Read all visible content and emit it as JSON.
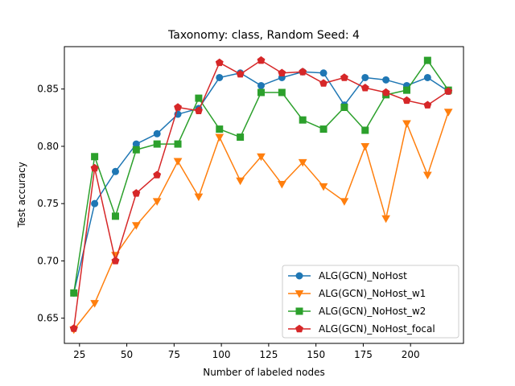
{
  "chart_data": {
    "type": "line",
    "title": "Taxonomy: class, Random Seed: 4",
    "xlabel": "Number of labeled nodes",
    "ylabel": "Test accuracy",
    "xlim": [
      17,
      228
    ],
    "ylim": [
      0.628,
      0.887
    ],
    "xticks": [
      25,
      50,
      75,
      100,
      125,
      150,
      175,
      200
    ],
    "yticks": [
      0.65,
      0.7,
      0.75,
      0.8,
      0.85
    ],
    "ytick_labels": [
      "0.65",
      "0.70",
      "0.75",
      "0.80",
      "0.85"
    ],
    "grid": false,
    "legend_position": "lower-right",
    "x": [
      22,
      33,
      44,
      55,
      66,
      77,
      88,
      99,
      110,
      121,
      132,
      143,
      154,
      165,
      176,
      187,
      198,
      209,
      220
    ],
    "series": [
      {
        "name": "ALG(GCN)_NoHost",
        "color": "#1f77b4",
        "marker": "circle",
        "values": [
          0.672,
          0.75,
          0.778,
          0.802,
          0.811,
          0.828,
          0.833,
          0.86,
          0.864,
          0.853,
          0.86,
          0.865,
          0.864,
          0.836,
          0.86,
          0.858,
          0.853,
          0.86,
          0.848
        ]
      },
      {
        "name": "ALG(GCN)_NoHost_w1",
        "color": "#ff7f0e",
        "marker": "triangle-down",
        "values": [
          0.64,
          0.663,
          0.705,
          0.731,
          0.752,
          0.787,
          0.756,
          0.808,
          0.77,
          0.791,
          0.767,
          0.786,
          0.765,
          0.752,
          0.8,
          0.737,
          0.82,
          0.775,
          0.83
        ]
      },
      {
        "name": "ALG(GCN)_NoHost_w2",
        "color": "#2ca02c",
        "marker": "square",
        "values": [
          0.672,
          0.791,
          0.739,
          0.797,
          0.802,
          0.802,
          0.842,
          0.815,
          0.808,
          0.847,
          0.847,
          0.823,
          0.815,
          0.834,
          0.814,
          0.845,
          0.849,
          0.875,
          0.849
        ]
      },
      {
        "name": "ALG(GCN)_NoHost_focal",
        "color": "#d62728",
        "marker": "pentagon",
        "values": [
          0.641,
          0.781,
          0.7,
          0.759,
          0.775,
          0.834,
          0.831,
          0.873,
          0.863,
          0.875,
          0.864,
          0.865,
          0.855,
          0.86,
          0.851,
          0.847,
          0.84,
          0.836,
          0.848
        ]
      }
    ]
  }
}
